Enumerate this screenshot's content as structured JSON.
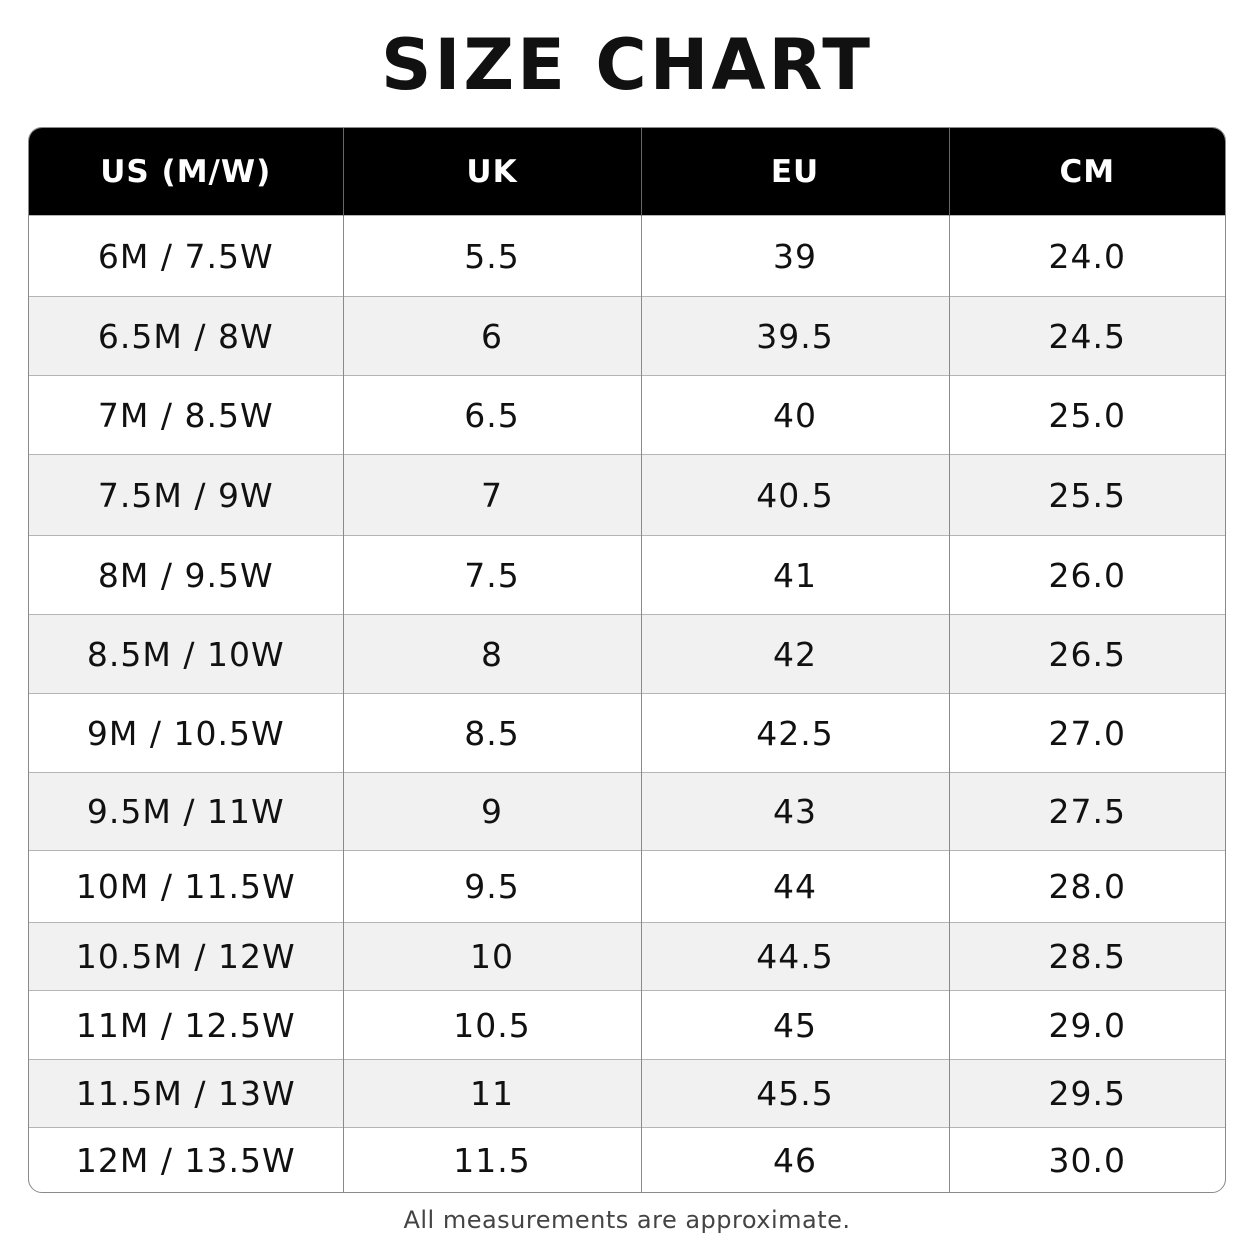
{
  "header": {
    "title": "SIZE CHART"
  },
  "table": {
    "columns": [
      "US (M/W)",
      "UK",
      "EU",
      "CM"
    ],
    "rows": [
      [
        "6M / 7.5W",
        "5.5",
        "39",
        "24.0"
      ],
      [
        "6.5M / 8W",
        "6",
        "39.5",
        "24.5"
      ],
      [
        "7M / 8.5W",
        "6.5",
        "40",
        "25.0"
      ],
      [
        "7.5M / 9W",
        "7",
        "40.5",
        "25.5"
      ],
      [
        "8M / 9.5W",
        "7.5",
        "41",
        "26.0"
      ],
      [
        "8.5M / 10W",
        "8",
        "42",
        "26.5"
      ],
      [
        "9M / 10.5W",
        "8.5",
        "42.5",
        "27.0"
      ],
      [
        "9.5M / 11W",
        "9",
        "43",
        "27.5"
      ],
      [
        "10M / 11.5W",
        "9.5",
        "44",
        "28.0"
      ],
      [
        "10.5M / 12W",
        "10",
        "44.5",
        "28.5"
      ],
      [
        "11M / 12.5W",
        "10.5",
        "45",
        "29.0"
      ],
      [
        "11.5M / 13W",
        "11",
        "45.5",
        "29.5"
      ],
      [
        "12M / 13.5W",
        "11.5",
        "46",
        "30.0"
      ]
    ]
  },
  "footer": {
    "note": "All measurements are approximate."
  }
}
